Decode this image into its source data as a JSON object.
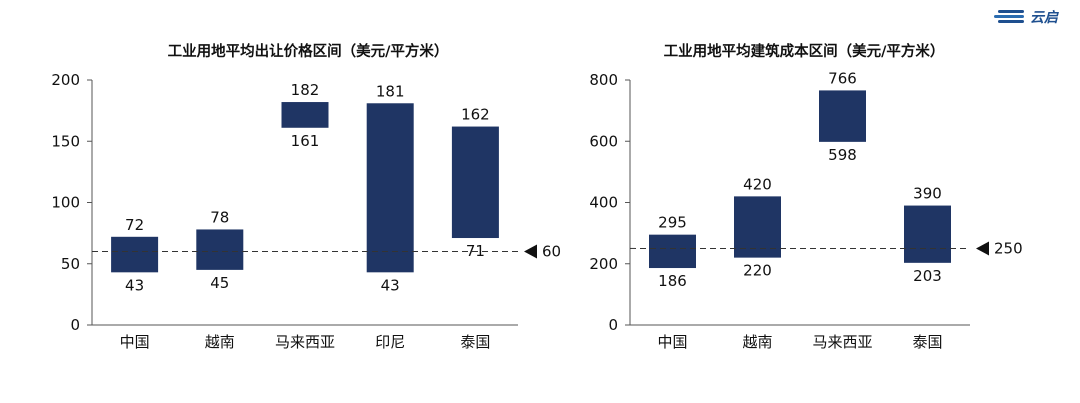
{
  "logo": {
    "text": "云启",
    "color": "#1e4f8f"
  },
  "colors": {
    "bar": "#1f3564",
    "text": "#111111",
    "axis": "#555555",
    "refline": "#333333"
  },
  "chart_data": [
    {
      "type": "bar",
      "subtype": "floating-range",
      "title": "工业用地平均出让价格区间（美元/平方米）",
      "categories": [
        "中国",
        "越南",
        "马来西亚",
        "印尼",
        "泰国"
      ],
      "low": [
        43,
        45,
        161,
        43,
        71
      ],
      "high": [
        72,
        78,
        182,
        181,
        162
      ],
      "ylim": [
        0,
        200
      ],
      "yticks": [
        0,
        50,
        100,
        150,
        200
      ],
      "reference_line": {
        "value": 60,
        "label": "60"
      },
      "grid": false,
      "legend": "none"
    },
    {
      "type": "bar",
      "subtype": "floating-range",
      "title": "工业用地平均建筑成本区间（美元/平方米）",
      "categories": [
        "中国",
        "越南",
        "马来西亚",
        "泰国"
      ],
      "low": [
        186,
        220,
        598,
        203
      ],
      "high": [
        295,
        420,
        766,
        390
      ],
      "ylim": [
        0,
        800
      ],
      "yticks": [
        0,
        200,
        400,
        600,
        800
      ],
      "reference_line": {
        "value": 250,
        "label": "250"
      },
      "grid": false,
      "legend": "none"
    }
  ]
}
